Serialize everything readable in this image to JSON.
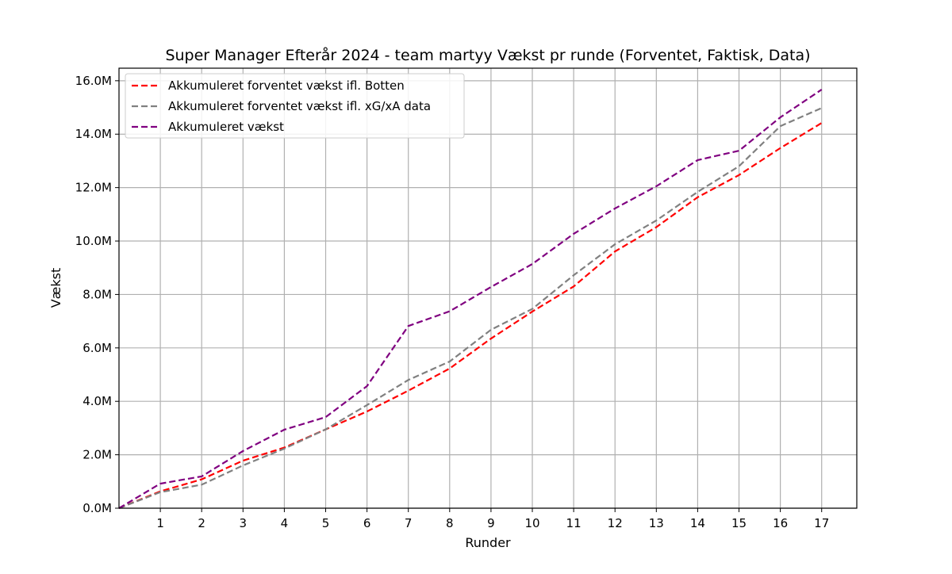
{
  "chart_data": {
    "type": "line",
    "title": "Super Manager Efterår 2024 - team martyy Vækst pr runde (Forventet, Faktisk, Data)",
    "xlabel": "Runder",
    "ylabel": "Vækst",
    "x": [
      0,
      1,
      2,
      3,
      4,
      5,
      6,
      7,
      8,
      9,
      10,
      11,
      12,
      13,
      14,
      15,
      16,
      17
    ],
    "xticks": [
      "1",
      "2",
      "3",
      "4",
      "5",
      "6",
      "7",
      "8",
      "9",
      "10",
      "11",
      "12",
      "13",
      "14",
      "15",
      "16",
      "17"
    ],
    "yticks": [
      "0.0M",
      "2.0M",
      "4.0M",
      "6.0M",
      "8.0M",
      "10.0M",
      "12.0M",
      "14.0M",
      "16.0M"
    ],
    "xlim": [
      0,
      17.85
    ],
    "ylim": [
      0,
      16.47
    ],
    "y_unit": "M",
    "grid": true,
    "legend_position": "upper-left",
    "series": [
      {
        "name": "Akkumuleret forventet vækst ifl. Botten",
        "color": "#ff0000",
        "style": "dashed",
        "values": [
          0,
          0.63,
          1.08,
          1.78,
          2.27,
          2.95,
          3.62,
          4.4,
          5.23,
          6.35,
          7.36,
          8.3,
          9.61,
          10.52,
          11.64,
          12.47,
          13.48,
          14.42
        ]
      },
      {
        "name": "Akkumuleret forventet vækst ifl. xG/xA data",
        "color": "#808080",
        "style": "dashed",
        "values": [
          0,
          0.6,
          0.88,
          1.6,
          2.23,
          2.95,
          3.86,
          4.8,
          5.49,
          6.68,
          7.46,
          8.72,
          9.88,
          10.77,
          11.84,
          12.8,
          14.3,
          14.98
        ]
      },
      {
        "name": "Akkumuleret vækst",
        "color": "#800080",
        "style": "dashed",
        "values": [
          0,
          0.92,
          1.19,
          2.14,
          2.94,
          3.41,
          4.57,
          6.82,
          7.37,
          8.28,
          9.14,
          10.27,
          11.22,
          12.05,
          13.03,
          13.38,
          14.63,
          15.67
        ]
      }
    ]
  }
}
